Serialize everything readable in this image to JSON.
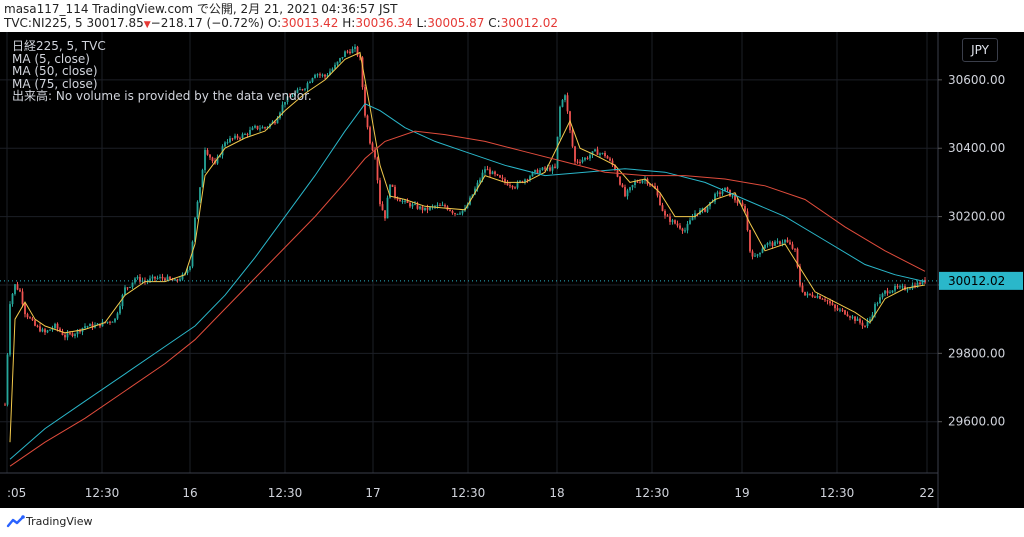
{
  "header": {
    "line1": "masa117_114 TradingView.com で公開, 2月 21, 2021 04:36:57 JST",
    "symbol": "TVC:NI225, 5",
    "last": "30017.85",
    "down_arrow": "▼",
    "change": "−218.17 (−0.72%)",
    "o_label": "O:",
    "o_value": "30013.42",
    "h_label": "H:",
    "h_value": "30036.34",
    "l_label": "L:",
    "l_value": "30005.87",
    "c_label": "C:",
    "c_value": "30012.02"
  },
  "legend": [
    "日経225, 5, TVC",
    "MA (5, close)",
    "MA (50, close)",
    "MA (75, close)",
    "出来高: No volume is provided by the data vendor."
  ],
  "currency": "JPY",
  "footer": {
    "brand": "TradingView"
  },
  "colors": {
    "up": "#26a69a",
    "down": "#ef5350",
    "ma5": "#f2c94c",
    "ma50": "#2ab7ca",
    "ma75": "#e04c3c",
    "price_label_bg": "#2ab7ca",
    "grid": "#1c1f26"
  },
  "chart_data": {
    "type": "candlestick",
    "symbol": "日経225, 5, TVC",
    "ylim": [
      29450,
      30740
    ],
    "y_ticks": [
      "29600.00",
      "29800.00",
      "30000.00",
      "30200.00",
      "30400.00",
      "30600.00"
    ],
    "y_tick_values": [
      29600,
      29800,
      30000,
      30200,
      30400,
      30600
    ],
    "x_ticks": [
      ":05",
      "12:30",
      "16",
      "12:30",
      "17",
      "12:30",
      "18",
      "12:30",
      "19",
      "12:30",
      "22"
    ],
    "current_price_label": "30012.02",
    "current_price": 30012.02,
    "close_path": [
      [
        0,
        29650
      ],
      [
        5,
        29950
      ],
      [
        10,
        30000
      ],
      [
        15,
        29980
      ],
      [
        20,
        29920
      ],
      [
        30,
        29880
      ],
      [
        40,
        29860
      ],
      [
        50,
        29880
      ],
      [
        60,
        29850
      ],
      [
        70,
        29860
      ],
      [
        80,
        29880
      ],
      [
        90,
        29880
      ],
      [
        100,
        29890
      ],
      [
        110,
        29900
      ],
      [
        120,
        29990
      ],
      [
        125,
        30000
      ],
      [
        130,
        30020
      ],
      [
        140,
        30010
      ],
      [
        150,
        30020
      ],
      [
        160,
        30020
      ],
      [
        170,
        30010
      ],
      [
        180,
        30030
      ],
      [
        185,
        30060
      ],
      [
        190,
        30200
      ],
      [
        195,
        30280
      ],
      [
        200,
        30400
      ],
      [
        210,
        30350
      ],
      [
        220,
        30420
      ],
      [
        230,
        30430
      ],
      [
        240,
        30440
      ],
      [
        250,
        30460
      ],
      [
        260,
        30460
      ],
      [
        270,
        30480
      ],
      [
        280,
        30540
      ],
      [
        290,
        30560
      ],
      [
        300,
        30580
      ],
      [
        310,
        30620
      ],
      [
        320,
        30610
      ],
      [
        330,
        30640
      ],
      [
        340,
        30680
      ],
      [
        350,
        30690
      ],
      [
        355,
        30660
      ],
      [
        360,
        30500
      ],
      [
        365,
        30420
      ],
      [
        370,
        30380
      ],
      [
        375,
        30240
      ],
      [
        380,
        30200
      ],
      [
        385,
        30300
      ],
      [
        390,
        30260
      ],
      [
        400,
        30240
      ],
      [
        410,
        30230
      ],
      [
        420,
        30220
      ],
      [
        430,
        30230
      ],
      [
        440,
        30230
      ],
      [
        450,
        30210
      ],
      [
        460,
        30220
      ],
      [
        470,
        30280
      ],
      [
        480,
        30340
      ],
      [
        490,
        30320
      ],
      [
        500,
        30300
      ],
      [
        510,
        30290
      ],
      [
        520,
        30310
      ],
      [
        530,
        30330
      ],
      [
        540,
        30340
      ],
      [
        550,
        30340
      ],
      [
        555,
        30520
      ],
      [
        560,
        30560
      ],
      [
        565,
        30450
      ],
      [
        570,
        30360
      ],
      [
        580,
        30370
      ],
      [
        590,
        30390
      ],
      [
        600,
        30380
      ],
      [
        610,
        30340
      ],
      [
        620,
        30260
      ],
      [
        630,
        30300
      ],
      [
        640,
        30310
      ],
      [
        650,
        30280
      ],
      [
        655,
        30240
      ],
      [
        660,
        30200
      ],
      [
        670,
        30180
      ],
      [
        680,
        30160
      ],
      [
        690,
        30210
      ],
      [
        700,
        30220
      ],
      [
        710,
        30260
      ],
      [
        720,
        30280
      ],
      [
        730,
        30250
      ],
      [
        740,
        30220
      ],
      [
        745,
        30100
      ],
      [
        750,
        30080
      ],
      [
        760,
        30120
      ],
      [
        770,
        30120
      ],
      [
        780,
        30130
      ],
      [
        790,
        30100
      ],
      [
        795,
        30000
      ],
      [
        800,
        29970
      ],
      [
        810,
        29970
      ],
      [
        820,
        29960
      ],
      [
        830,
        29930
      ],
      [
        840,
        29920
      ],
      [
        850,
        29900
      ],
      [
        860,
        29880
      ],
      [
        865,
        29900
      ],
      [
        870,
        29940
      ],
      [
        880,
        29980
      ],
      [
        890,
        29990
      ],
      [
        900,
        29990
      ],
      [
        910,
        30000
      ],
      [
        920,
        30012
      ]
    ],
    "series": [
      {
        "name": "MA (5, close)",
        "points": [
          [
            5,
            29540
          ],
          [
            10,
            29900
          ],
          [
            20,
            29950
          ],
          [
            30,
            29900
          ],
          [
            40,
            29880
          ],
          [
            60,
            29860
          ],
          [
            80,
            29870
          ],
          [
            100,
            29890
          ],
          [
            120,
            29970
          ],
          [
            140,
            30010
          ],
          [
            160,
            30010
          ],
          [
            180,
            30030
          ],
          [
            190,
            30120
          ],
          [
            200,
            30320
          ],
          [
            210,
            30360
          ],
          [
            220,
            30400
          ],
          [
            240,
            30430
          ],
          [
            260,
            30450
          ],
          [
            280,
            30510
          ],
          [
            300,
            30560
          ],
          [
            320,
            30600
          ],
          [
            340,
            30660
          ],
          [
            355,
            30680
          ],
          [
            365,
            30520
          ],
          [
            375,
            30350
          ],
          [
            385,
            30260
          ],
          [
            400,
            30250
          ],
          [
            420,
            30230
          ],
          [
            440,
            30225
          ],
          [
            460,
            30220
          ],
          [
            480,
            30320
          ],
          [
            500,
            30300
          ],
          [
            520,
            30300
          ],
          [
            540,
            30330
          ],
          [
            555,
            30420
          ],
          [
            565,
            30480
          ],
          [
            575,
            30400
          ],
          [
            590,
            30380
          ],
          [
            610,
            30350
          ],
          [
            625,
            30300
          ],
          [
            640,
            30310
          ],
          [
            655,
            30270
          ],
          [
            670,
            30200
          ],
          [
            690,
            30200
          ],
          [
            710,
            30250
          ],
          [
            730,
            30270
          ],
          [
            745,
            30180
          ],
          [
            760,
            30100
          ],
          [
            780,
            30120
          ],
          [
            795,
            30050
          ],
          [
            810,
            29980
          ],
          [
            830,
            29950
          ],
          [
            850,
            29920
          ],
          [
            865,
            29890
          ],
          [
            880,
            29960
          ],
          [
            900,
            29990
          ],
          [
            920,
            30000
          ]
        ]
      },
      {
        "name": "MA (50, close)",
        "points": [
          [
            5,
            29490
          ],
          [
            40,
            29580
          ],
          [
            80,
            29660
          ],
          [
            120,
            29740
          ],
          [
            160,
            29820
          ],
          [
            190,
            29880
          ],
          [
            220,
            29970
          ],
          [
            250,
            30080
          ],
          [
            280,
            30200
          ],
          [
            310,
            30320
          ],
          [
            340,
            30450
          ],
          [
            360,
            30530
          ],
          [
            375,
            30510
          ],
          [
            400,
            30460
          ],
          [
            430,
            30420
          ],
          [
            460,
            30390
          ],
          [
            500,
            30350
          ],
          [
            540,
            30320
          ],
          [
            580,
            30330
          ],
          [
            620,
            30340
          ],
          [
            660,
            30330
          ],
          [
            700,
            30300
          ],
          [
            740,
            30250
          ],
          [
            780,
            30200
          ],
          [
            820,
            30130
          ],
          [
            860,
            30060
          ],
          [
            890,
            30030
          ],
          [
            920,
            30010
          ]
        ]
      },
      {
        "name": "MA (75, close)",
        "points": [
          [
            5,
            29470
          ],
          [
            40,
            29540
          ],
          [
            80,
            29610
          ],
          [
            120,
            29690
          ],
          [
            160,
            29770
          ],
          [
            190,
            29840
          ],
          [
            220,
            29930
          ],
          [
            250,
            30020
          ],
          [
            280,
            30110
          ],
          [
            310,
            30200
          ],
          [
            340,
            30300
          ],
          [
            360,
            30370
          ],
          [
            380,
            30420
          ],
          [
            410,
            30450
          ],
          [
            440,
            30440
          ],
          [
            480,
            30420
          ],
          [
            520,
            30390
          ],
          [
            560,
            30360
          ],
          [
            600,
            30330
          ],
          [
            640,
            30320
          ],
          [
            680,
            30320
          ],
          [
            720,
            30310
          ],
          [
            760,
            30290
          ],
          [
            800,
            30250
          ],
          [
            840,
            30170
          ],
          [
            880,
            30100
          ],
          [
            920,
            30040
          ]
        ]
      }
    ]
  }
}
